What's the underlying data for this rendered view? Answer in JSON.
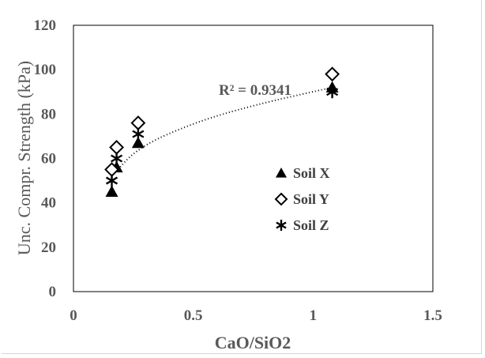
{
  "chart_data": {
    "type": "scatter",
    "title": "",
    "xlabel": "CaO/SiO2",
    "ylabel": "Unc. Compr. Strength (kPa)",
    "xlim": [
      0,
      1.5
    ],
    "ylim": [
      0,
      120
    ],
    "xticks": [
      0,
      0.5,
      1,
      1.5
    ],
    "xtick_labels": [
      "0",
      "0.5",
      "1",
      "1.5"
    ],
    "yticks": [
      0,
      20,
      40,
      60,
      80,
      100,
      120
    ],
    "ytick_labels": [
      "0",
      "20",
      "40",
      "60",
      "80",
      "100",
      "120"
    ],
    "grid": false,
    "legend_position": "center-right",
    "series": [
      {
        "name": "Soil X",
        "marker": "triangle",
        "color": "#000000",
        "points": [
          {
            "x": 0.16,
            "y": 45
          },
          {
            "x": 0.18,
            "y": 56
          },
          {
            "x": 0.27,
            "y": 67
          },
          {
            "x": 1.08,
            "y": 92
          }
        ]
      },
      {
        "name": "Soil Y",
        "marker": "diamond-open",
        "color": "#000000",
        "points": [
          {
            "x": 0.16,
            "y": 55
          },
          {
            "x": 0.18,
            "y": 65
          },
          {
            "x": 0.27,
            "y": 76
          },
          {
            "x": 1.08,
            "y": 98
          }
        ]
      },
      {
        "name": "Soil Z",
        "marker": "star",
        "color": "#000000",
        "points": [
          {
            "x": 0.16,
            "y": 50
          },
          {
            "x": 0.18,
            "y": 60
          },
          {
            "x": 0.27,
            "y": 71
          },
          {
            "x": 1.08,
            "y": 90
          }
        ]
      }
    ],
    "trendline": {
      "style": "dotted",
      "color": "#000000",
      "x_range": [
        0.16,
        1.08
      ],
      "shape": "concave increasing",
      "points": [
        {
          "x": 0.16,
          "y": 52
        },
        {
          "x": 0.27,
          "y": 65
        },
        {
          "x": 0.5,
          "y": 76
        },
        {
          "x": 0.75,
          "y": 84
        },
        {
          "x": 1.08,
          "y": 92
        }
      ],
      "label": "R² = 0.9341"
    }
  }
}
